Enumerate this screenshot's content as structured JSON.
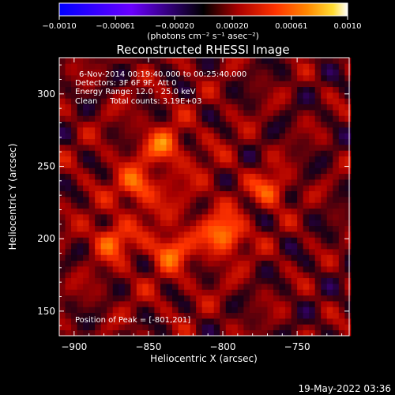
{
  "chart_data": {
    "type": "heatmap",
    "title": "Reconstructed RHESSI Image",
    "xlabel": "Heliocentric X (arcsec)",
    "ylabel": "Heliocentric Y (arcsec)",
    "xlim": [
      -910,
      -715
    ],
    "ylim": [
      133,
      325
    ],
    "x_ticks": [
      -900,
      -850,
      -800,
      -750
    ],
    "y_ticks": [
      150,
      200,
      250,
      300
    ],
    "x_tick_labels": [
      "−900",
      "−850",
      "−800",
      "−750"
    ],
    "y_tick_labels": [
      "150",
      "200",
      "250",
      "300"
    ],
    "colorbar": {
      "min": -0.001,
      "max": 0.001,
      "ticks": [
        -0.001,
        -0.00061,
        -0.0002,
        0.0002,
        0.00061,
        0.001
      ],
      "tick_labels": [
        "−0.0010",
        "−0.00061",
        "−0.00020",
        "0.00020",
        "0.00061",
        "0.0010"
      ],
      "units_label": "(photons cm⁻² s⁻¹ asec⁻²)",
      "colormap": [
        "#0000ff",
        "#6a00ff",
        "#000000",
        "#aa0000",
        "#ff3300",
        "#ff8800",
        "#ffdd33",
        "#ffffff"
      ]
    },
    "peak": {
      "x": -801,
      "y": 201
    },
    "secondary_peaks": [
      {
        "x": -877,
        "y": 197
      },
      {
        "x": -860,
        "y": 235
      },
      {
        "x": -837,
        "y": 190
      },
      {
        "x": -770,
        "y": 232
      },
      {
        "x": -842,
        "y": 262
      }
    ],
    "annotations": [
      "6-Nov-2014 00:19:40.000 to 00:25:40.000",
      "Detectors: 3F 6F 9F, Att 0",
      "Energy Range: 12.0 - 25.0 keV",
      "Clean     Total counts: 3.19E+03",
      "Position of Peak = [-801,201]"
    ]
  },
  "footer": {
    "timestamp": "19-May-2022 03:36"
  }
}
